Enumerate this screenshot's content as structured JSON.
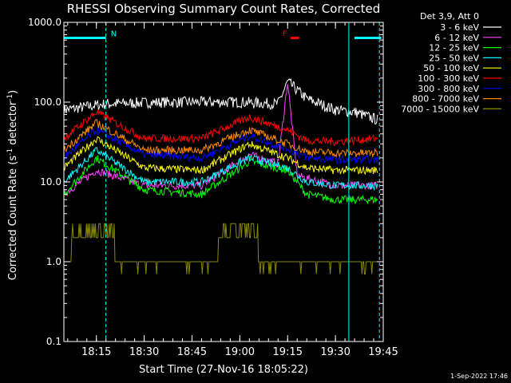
{
  "chart_data": {
    "type": "line",
    "title": "RHESSI Observing Summary Count Rates, Corrected",
    "xlabel": "Start Time (27-Nov-16 18:05:22)",
    "ylabel_main": "Corrected Count Rate (s",
    "ylabel_sup": "-1",
    "ylabel_tail": " detector",
    "ylabel_sup2": "-1",
    "ylabel_end": ")",
    "footer_date": "1-Sep-2022 17:46",
    "y_scale": "log",
    "ylim": [
      0.1,
      1000
    ],
    "xlim_minutes": [
      18.08,
      19.75
    ],
    "x_ticks": [
      {
        "label": "18:15",
        "value": 18.25
      },
      {
        "label": "18:30",
        "value": 18.5
      },
      {
        "label": "18:45",
        "value": 18.75
      },
      {
        "label": "19:00",
        "value": 19.0
      },
      {
        "label": "19:15",
        "value": 19.25
      },
      {
        "label": "19:30",
        "value": 19.5
      },
      {
        "label": "19:45",
        "value": 19.75
      }
    ],
    "y_ticks": [
      {
        "label": "1000.0",
        "value": 1000
      },
      {
        "label": "100.0",
        "value": 100
      },
      {
        "label": "10.0",
        "value": 10
      },
      {
        "label": "1.0",
        "value": 1
      },
      {
        "label": "0.1",
        "value": 0.1
      }
    ],
    "legend_title": "Det 3,9, Att 0",
    "legend_position": "top-right",
    "series": [
      {
        "name": "3 - 6 keV",
        "color": "#ffffff",
        "anchors": [
          [
            18.08,
            80
          ],
          [
            18.3,
            95
          ],
          [
            18.6,
            100
          ],
          [
            19.0,
            100
          ],
          [
            19.2,
            95
          ],
          [
            19.25,
            180
          ],
          [
            19.35,
            110
          ],
          [
            19.5,
            80
          ],
          [
            19.6,
            75
          ],
          [
            19.72,
            60
          ]
        ]
      },
      {
        "name": "6 - 12 keV",
        "color": "#ff44ff",
        "anchors": [
          [
            18.08,
            7
          ],
          [
            18.25,
            14
          ],
          [
            18.5,
            9
          ],
          [
            18.8,
            9
          ],
          [
            19.05,
            22
          ],
          [
            19.2,
            17
          ],
          [
            19.25,
            180
          ],
          [
            19.3,
            12
          ],
          [
            19.5,
            9
          ],
          [
            19.72,
            9
          ]
        ]
      },
      {
        "name": "12 - 25 keV",
        "color": "#00ff00",
        "anchors": [
          [
            18.08,
            7
          ],
          [
            18.25,
            20
          ],
          [
            18.5,
            8
          ],
          [
            18.8,
            7
          ],
          [
            19.05,
            18
          ],
          [
            19.25,
            14
          ],
          [
            19.35,
            7
          ],
          [
            19.5,
            6
          ],
          [
            19.72,
            6
          ]
        ]
      },
      {
        "name": "25 - 50 keV",
        "color": "#00ffff",
        "anchors": [
          [
            18.08,
            10
          ],
          [
            18.25,
            25
          ],
          [
            18.5,
            10
          ],
          [
            18.8,
            10
          ],
          [
            19.05,
            20
          ],
          [
            19.25,
            15
          ],
          [
            19.35,
            10
          ],
          [
            19.5,
            9
          ],
          [
            19.72,
            9
          ]
        ]
      },
      {
        "name": "50 - 100 keV",
        "color": "#ffff00",
        "anchors": [
          [
            18.08,
            15
          ],
          [
            18.25,
            35
          ],
          [
            18.5,
            15
          ],
          [
            18.8,
            14
          ],
          [
            19.05,
            30
          ],
          [
            19.25,
            20
          ],
          [
            19.35,
            15
          ],
          [
            19.5,
            14
          ],
          [
            19.72,
            14
          ]
        ]
      },
      {
        "name": "100 - 300 keV",
        "color": "#ff0000",
        "anchors": [
          [
            18.08,
            35
          ],
          [
            18.25,
            75
          ],
          [
            18.5,
            35
          ],
          [
            18.8,
            35
          ],
          [
            19.05,
            65
          ],
          [
            19.25,
            45
          ],
          [
            19.35,
            33
          ],
          [
            19.5,
            32
          ],
          [
            19.72,
            35
          ]
        ]
      },
      {
        "name": "300 - 800 keV",
        "color": "#0000ff",
        "anchors": [
          [
            18.08,
            20
          ],
          [
            18.25,
            45
          ],
          [
            18.5,
            22
          ],
          [
            18.8,
            20
          ],
          [
            19.05,
            38
          ],
          [
            19.25,
            26
          ],
          [
            19.35,
            20
          ],
          [
            19.5,
            19
          ],
          [
            19.72,
            19
          ]
        ]
      },
      {
        "name": "800 - 7000 keV",
        "color": "#ff8800",
        "anchors": [
          [
            18.08,
            25
          ],
          [
            18.25,
            55
          ],
          [
            18.5,
            25
          ],
          [
            18.8,
            25
          ],
          [
            19.05,
            45
          ],
          [
            19.25,
            30
          ],
          [
            19.35,
            24
          ],
          [
            19.5,
            23
          ],
          [
            19.72,
            23
          ]
        ]
      },
      {
        "name": "7000 - 15000 keV",
        "color": "#888800",
        "anchors": [
          [
            18.1,
            1
          ],
          [
            18.15,
            3
          ],
          [
            18.25,
            3
          ],
          [
            18.4,
            1
          ],
          [
            18.82,
            1
          ],
          [
            19.0,
            3
          ],
          [
            19.15,
            1
          ],
          [
            19.72,
            1
          ]
        ]
      }
    ],
    "flag_bars": [
      {
        "label": "N",
        "color": "#00ffff",
        "segments": [
          [
            18.08,
            18.3
          ],
          [
            19.6,
            19.74
          ]
        ],
        "value": 700
      },
      {
        "label": "F",
        "color": "#ff0000",
        "segments": [
          [
            19.265,
            19.31
          ]
        ],
        "value": 700
      }
    ],
    "vertical_markers": [
      {
        "color": "#00ffff",
        "style": "dashed",
        "value": 18.3
      },
      {
        "color": "#00ffff",
        "style": "solid",
        "value": 19.57
      },
      {
        "color": "#00ffff",
        "style": "dashed",
        "value": 19.73
      },
      {
        "color": "#00ffff",
        "style": "solid",
        "value": 18.08
      }
    ]
  }
}
